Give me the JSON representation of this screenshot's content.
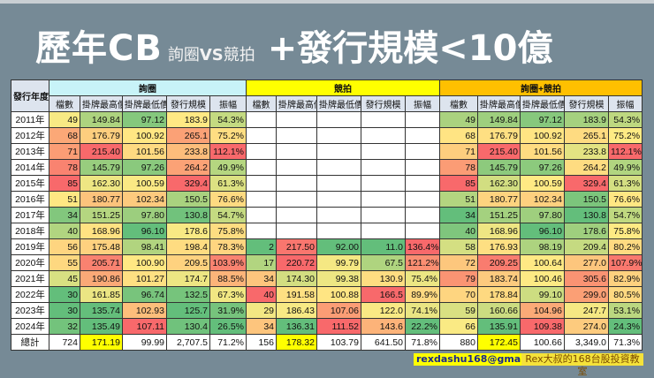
{
  "title": {
    "main": "歷年CB",
    "sub_a": "詢圈",
    "sub_vs": "VS",
    "sub_b": "競拍",
    "tail": "+發行規模<10億"
  },
  "table": {
    "year_header": "發行年度",
    "groups": [
      "詢圈",
      "競拍",
      "詢圈+競拍"
    ],
    "columns": [
      "檔數",
      "掛牌最高價",
      "掛牌最低價",
      "發行規模",
      "振幅"
    ],
    "rows": [
      {
        "year": "2011年",
        "a": [
          "49",
          "149.84",
          "97.12",
          "183.9",
          "54.3%"
        ],
        "b": [
          "",
          "",
          "",
          "",
          ""
        ],
        "c": [
          "49",
          "149.84",
          "97.12",
          "183.9",
          "54.3%"
        ]
      },
      {
        "year": "2012年",
        "a": [
          "68",
          "176.79",
          "100.92",
          "265.1",
          "75.2%"
        ],
        "b": [
          "",
          "",
          "",
          "",
          ""
        ],
        "c": [
          "68",
          "176.79",
          "100.92",
          "265.1",
          "75.2%"
        ]
      },
      {
        "year": "2013年",
        "a": [
          "71",
          "215.40",
          "101.56",
          "233.8",
          "112.1%"
        ],
        "b": [
          "",
          "",
          "",
          "",
          ""
        ],
        "c": [
          "71",
          "215.40",
          "101.56",
          "233.8",
          "112.1%"
        ]
      },
      {
        "year": "2014年",
        "a": [
          "78",
          "145.79",
          "97.26",
          "264.2",
          "49.9%"
        ],
        "b": [
          "",
          "",
          "",
          "",
          ""
        ],
        "c": [
          "78",
          "145.79",
          "97.26",
          "264.2",
          "49.9%"
        ]
      },
      {
        "year": "2015年",
        "a": [
          "85",
          "162.30",
          "100.59",
          "329.4",
          "61.3%"
        ],
        "b": [
          "",
          "",
          "",
          "",
          ""
        ],
        "c": [
          "85",
          "162.30",
          "100.59",
          "329.4",
          "61.3%"
        ]
      },
      {
        "year": "2016年",
        "a": [
          "51",
          "180.77",
          "102.34",
          "150.5",
          "76.6%"
        ],
        "b": [
          "",
          "",
          "",
          "",
          ""
        ],
        "c": [
          "51",
          "180.77",
          "102.34",
          "150.5",
          "76.6%"
        ]
      },
      {
        "year": "2017年",
        "a": [
          "34",
          "151.25",
          "97.80",
          "130.8",
          "54.7%"
        ],
        "b": [
          "",
          "",
          "",
          "",
          ""
        ],
        "c": [
          "34",
          "151.25",
          "97.80",
          "130.8",
          "54.7%"
        ]
      },
      {
        "year": "2018年",
        "a": [
          "40",
          "168.96",
          "96.10",
          "178.6",
          "75.8%"
        ],
        "b": [
          "",
          "",
          "",
          "",
          ""
        ],
        "c": [
          "40",
          "168.96",
          "96.10",
          "178.6",
          "75.8%"
        ]
      },
      {
        "year": "2019年",
        "a": [
          "56",
          "175.48",
          "98.41",
          "198.4",
          "78.3%"
        ],
        "b": [
          "2",
          "217.50",
          "92.00",
          "11.0",
          "136.4%"
        ],
        "c": [
          "58",
          "176.93",
          "98.19",
          "209.4",
          "80.2%"
        ]
      },
      {
        "year": "2020年",
        "a": [
          "55",
          "205.71",
          "100.90",
          "209.5",
          "103.9%"
        ],
        "b": [
          "17",
          "220.72",
          "99.79",
          "67.5",
          "121.2%"
        ],
        "c": [
          "72",
          "209.25",
          "100.64",
          "277.0",
          "107.9%"
        ]
      },
      {
        "year": "2021年",
        "a": [
          "45",
          "190.86",
          "101.27",
          "174.7",
          "88.5%"
        ],
        "b": [
          "34",
          "174.30",
          "99.38",
          "130.9",
          "75.4%"
        ],
        "c": [
          "79",
          "183.74",
          "100.46",
          "305.6",
          "82.9%"
        ]
      },
      {
        "year": "2022年",
        "a": [
          "30",
          "161.85",
          "96.74",
          "132.5",
          "67.3%"
        ],
        "b": [
          "40",
          "191.58",
          "100.88",
          "166.5",
          "89.9%"
        ],
        "c": [
          "70",
          "178.84",
          "99.10",
          "299.0",
          "80.5%"
        ]
      },
      {
        "year": "2023年",
        "a": [
          "30",
          "135.74",
          "102.93",
          "125.7",
          "31.9%"
        ],
        "b": [
          "29",
          "186.43",
          "107.06",
          "122.0",
          "74.1%"
        ],
        "c": [
          "59",
          "160.66",
          "104.96",
          "247.7",
          "53.1%"
        ]
      },
      {
        "year": "2024年",
        "a": [
          "32",
          "135.49",
          "107.11",
          "130.4",
          "26.5%"
        ],
        "b": [
          "34",
          "136.31",
          "111.52",
          "143.6",
          "22.2%"
        ],
        "c": [
          "66",
          "135.91",
          "109.38",
          "274.0",
          "24.3%"
        ]
      }
    ],
    "total": {
      "year": "總計",
      "a": [
        "724",
        "171.19",
        "99.99",
        "2,707.5",
        "71.2%"
      ],
      "b": [
        "156",
        "178.32",
        "103.79",
        "641.50",
        "71.8%"
      ],
      "c": [
        "880",
        "172.45",
        "100.66",
        "3,349.0",
        "71.3%"
      ]
    },
    "heatmap_colors": {
      "low": "#63be7b",
      "mid": "#ffeb84",
      "high": "#f8696b"
    },
    "total_highlight": "#ffff00"
  },
  "footer": {
    "email": "rexdashu168@gmail.com",
    "brand": "Rex大叔的168台股投資教室"
  }
}
